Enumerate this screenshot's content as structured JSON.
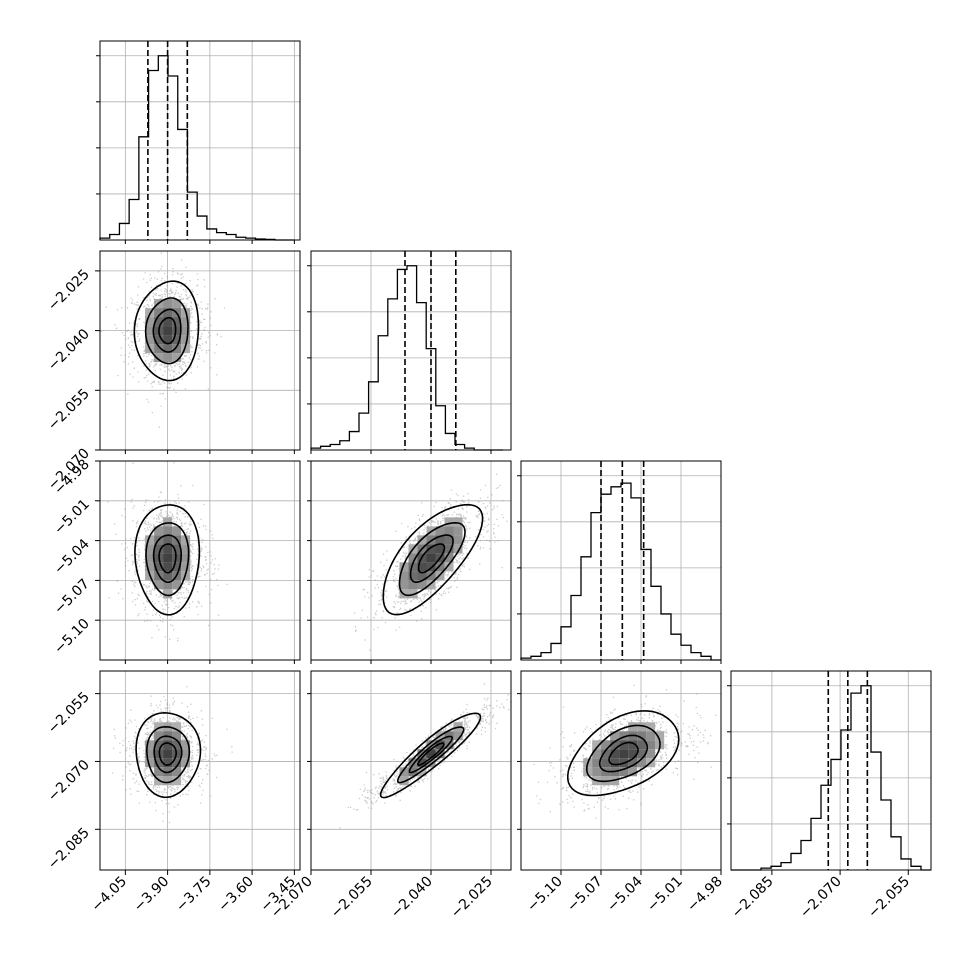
{
  "chart_data": {
    "type": "corner",
    "parameters": [
      {
        "index": 0,
        "range": [
          -4.14,
          -3.43
        ],
        "ticks": [
          "-4.05",
          "-3.90",
          "-3.75",
          "-3.60",
          "-3.45"
        ],
        "tick_values": [
          -4.05,
          -3.9,
          -3.75,
          -3.6,
          -3.45
        ],
        "quantiles": [
          -3.97,
          -3.9,
          -3.83
        ]
      },
      {
        "index": 1,
        "range": [
          -2.07,
          -2.02
        ],
        "ticks": [
          "-2.070",
          "-2.055",
          "-2.040",
          "-2.025"
        ],
        "tick_values": [
          -2.07,
          -2.055,
          -2.04,
          -2.025
        ],
        "quantiles": [
          -2.0465,
          -2.04,
          -2.0338
        ]
      },
      {
        "index": 2,
        "range": [
          -5.13,
          -4.98
        ],
        "ticks": [
          "-5.10",
          "-5.07",
          "-5.04",
          "-5.01",
          "-4.98"
        ],
        "tick_values": [
          -5.1,
          -5.07,
          -5.04,
          -5.01,
          -4.98
        ],
        "quantiles": [
          -5.07,
          -5.054,
          -5.038
        ]
      },
      {
        "index": 3,
        "range": [
          -2.094,
          -2.05
        ],
        "ticks": [
          "-2.085",
          "-2.070",
          "-2.055"
        ],
        "tick_values": [
          -2.085,
          -2.07,
          -2.055
        ],
        "quantiles": [
          -2.0726,
          -2.0683,
          -2.064
        ]
      }
    ],
    "histograms": [
      {
        "param": 0,
        "bin_range": [
          -4.14,
          -3.45
        ],
        "counts": [
          1,
          3,
          9,
          22,
          56,
          92,
          100,
          89,
          60,
          26,
          13,
          6,
          4,
          3,
          1.5,
          1,
          0.5,
          0.3,
          0,
          0
        ]
      },
      {
        "param": 1,
        "bin_range": [
          -2.07,
          -2.022
        ],
        "counts": [
          1,
          2,
          3,
          5,
          10,
          20,
          37,
          62,
          82,
          98,
          100,
          80,
          55,
          24,
          9,
          3,
          1,
          0,
          0,
          0
        ]
      },
      {
        "param": 2,
        "bin_range": [
          -5.13,
          -4.98
        ],
        "counts": [
          1,
          2,
          4,
          9,
          18,
          35,
          56,
          80,
          90,
          94,
          96,
          88,
          60,
          40,
          25,
          14,
          8,
          4,
          2,
          0
        ]
      },
      {
        "param": 3,
        "bin_range": [
          -2.094,
          -2.05
        ],
        "counts": [
          0,
          0,
          0,
          1,
          2,
          4,
          9,
          16,
          28,
          46,
          60,
          76,
          96,
          100,
          64,
          38,
          18,
          6,
          2,
          0
        ]
      }
    ],
    "pairs": [
      {
        "x": 0,
        "y": 1,
        "center": [
          -3.9,
          -2.04
        ],
        "sd": [
          0.055,
          0.006
        ],
        "rho": 0.05
      },
      {
        "x": 0,
        "y": 2,
        "center": [
          -3.9,
          -5.053
        ],
        "sd": [
          0.055,
          0.02
        ],
        "rho": 0.0
      },
      {
        "x": 1,
        "y": 2,
        "center": [
          -2.04,
          -5.053
        ],
        "sd": [
          0.006,
          0.02
        ],
        "rho": 0.7
      },
      {
        "x": 0,
        "y": 3,
        "center": [
          -3.9,
          -2.0683
        ],
        "sd": [
          0.055,
          0.0045
        ],
        "rho": 0.0
      },
      {
        "x": 1,
        "y": 3,
        "center": [
          -2.04,
          -2.0683
        ],
        "sd": [
          0.006,
          0.0045
        ],
        "rho": 0.92
      },
      {
        "x": 2,
        "y": 3,
        "center": [
          -5.053,
          -2.0683
        ],
        "sd": [
          0.02,
          0.0045
        ],
        "rho": 0.45
      }
    ],
    "contour_levels_sigma": [
      0.5,
      1.0,
      1.5,
      2.0
    ],
    "grid": true
  }
}
